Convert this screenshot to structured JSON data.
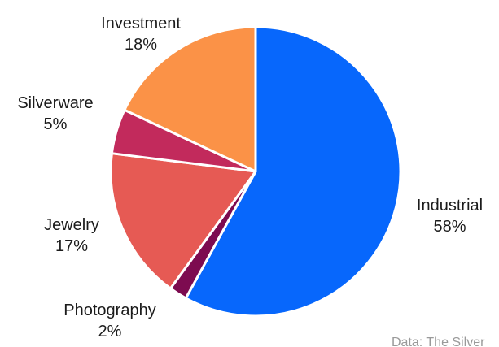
{
  "chart_data": {
    "type": "pie",
    "title": "",
    "start_angle_deg_from_top": 0,
    "direction": "clockwise",
    "labels_position": "outside",
    "separator_color": "#ffffff",
    "background_color": "#ffffff",
    "label_text_color": "#1b1b1b",
    "slices": [
      {
        "name": "Industrial",
        "value": 58,
        "pct_label": "58%",
        "color": "#0767FC"
      },
      {
        "name": "Photography",
        "value": 2,
        "pct_label": "2%",
        "color": "#7D0B50"
      },
      {
        "name": "Jewelry",
        "value": 17,
        "pct_label": "17%",
        "color": "#E65A54"
      },
      {
        "name": "Silverware",
        "value": 5,
        "pct_label": "5%",
        "color": "#C22A5C"
      },
      {
        "name": "Investment",
        "value": 18,
        "pct_label": "18%",
        "color": "#FB9247"
      }
    ],
    "attribution_fragment": "Data: The Silver"
  }
}
